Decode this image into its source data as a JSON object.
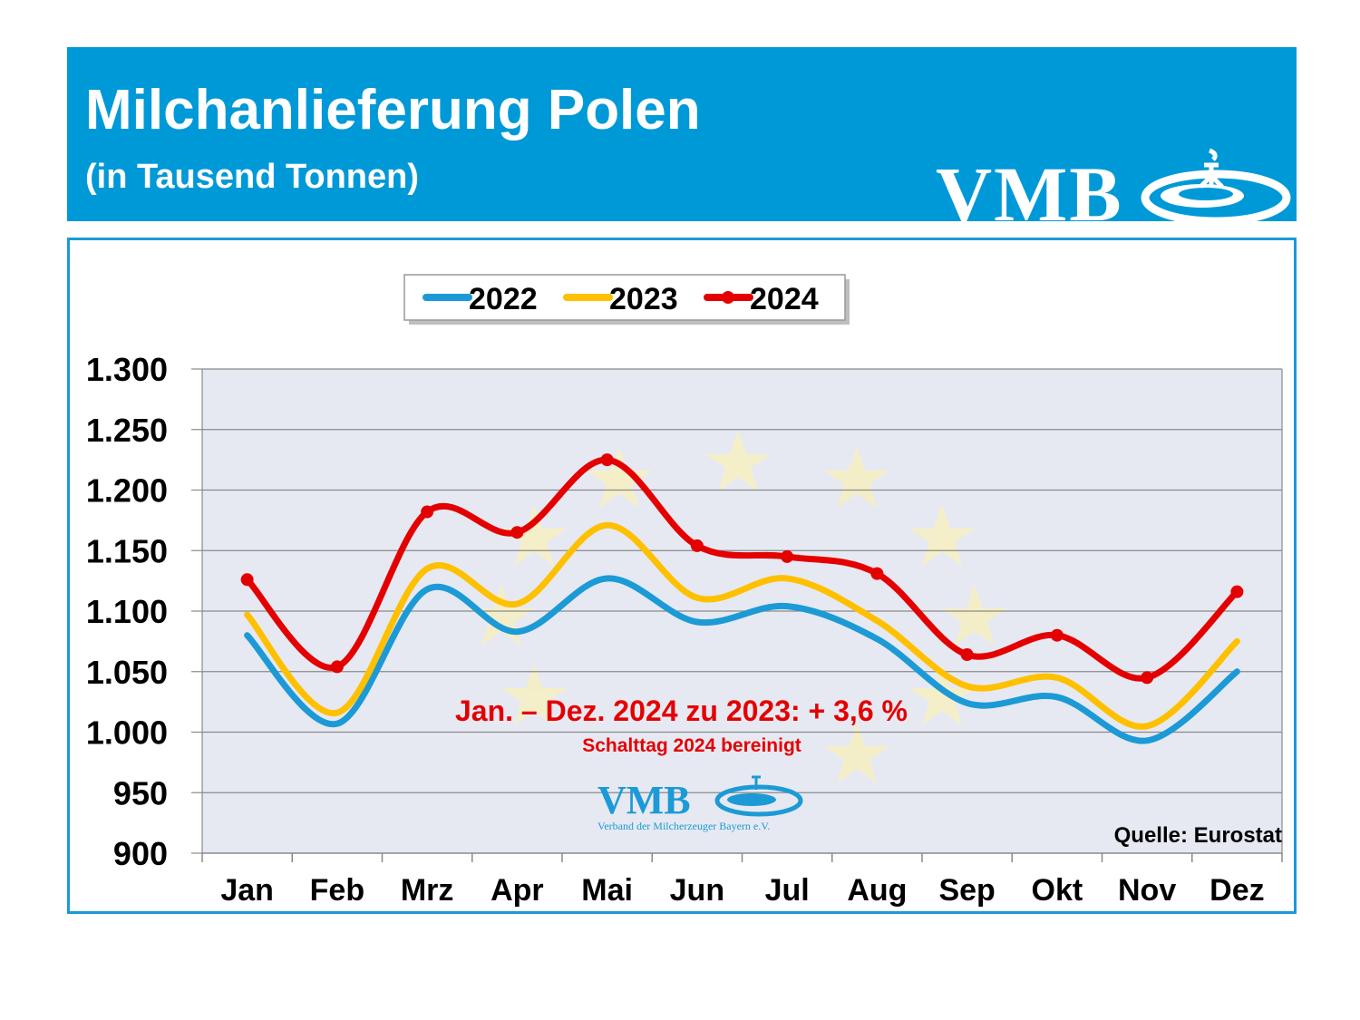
{
  "header": {
    "title": "Milchanlieferung Polen",
    "subtitle": "(in Tausend Tonnen)",
    "logo_text": "VMB"
  },
  "watermark": {
    "logo_text": "VMB",
    "tagline": "Verband der Milcherzeuger Bayern e.V."
  },
  "annotation": {
    "main": "Jan. – Dez. 2024 zu 2023: + 3,6 %",
    "sub": "Schalttag 2024 bereinigt"
  },
  "source": "Quelle: Eurostat",
  "colors": {
    "banner": "#0099d8",
    "plot_bg": "#e6e9f2",
    "s2022": "#1c9ad6",
    "s2023": "#ffc000",
    "s2024": "#e40000"
  },
  "chart_data": {
    "type": "line",
    "categories": [
      "Jan",
      "Feb",
      "Mrz",
      "Apr",
      "Mai",
      "Jun",
      "Jul",
      "Aug",
      "Sep",
      "Okt",
      "Nov",
      "Dez"
    ],
    "y_tick_labels": [
      "900",
      "950",
      "1.000",
      "1.050",
      "1.100",
      "1.150",
      "1.200",
      "1.250",
      "1.300"
    ],
    "ylim": [
      900,
      1300
    ],
    "grid": true,
    "legend_position": "top-center",
    "series": [
      {
        "name": "2022",
        "values": [
          1080,
          1007,
          1118,
          1083,
          1127,
          1091,
          1104,
          1077,
          1024,
          1029,
          993,
          1050
        ]
      },
      {
        "name": "2023",
        "values": [
          1097,
          1016,
          1135,
          1106,
          1171,
          1111,
          1127,
          1092,
          1038,
          1045,
          1005,
          1075
        ]
      },
      {
        "name": "2024",
        "values": [
          1126,
          1054,
          1182,
          1165,
          1225,
          1154,
          1145,
          1131,
          1064,
          1080,
          1045,
          1116
        ],
        "markers": true
      }
    ]
  }
}
